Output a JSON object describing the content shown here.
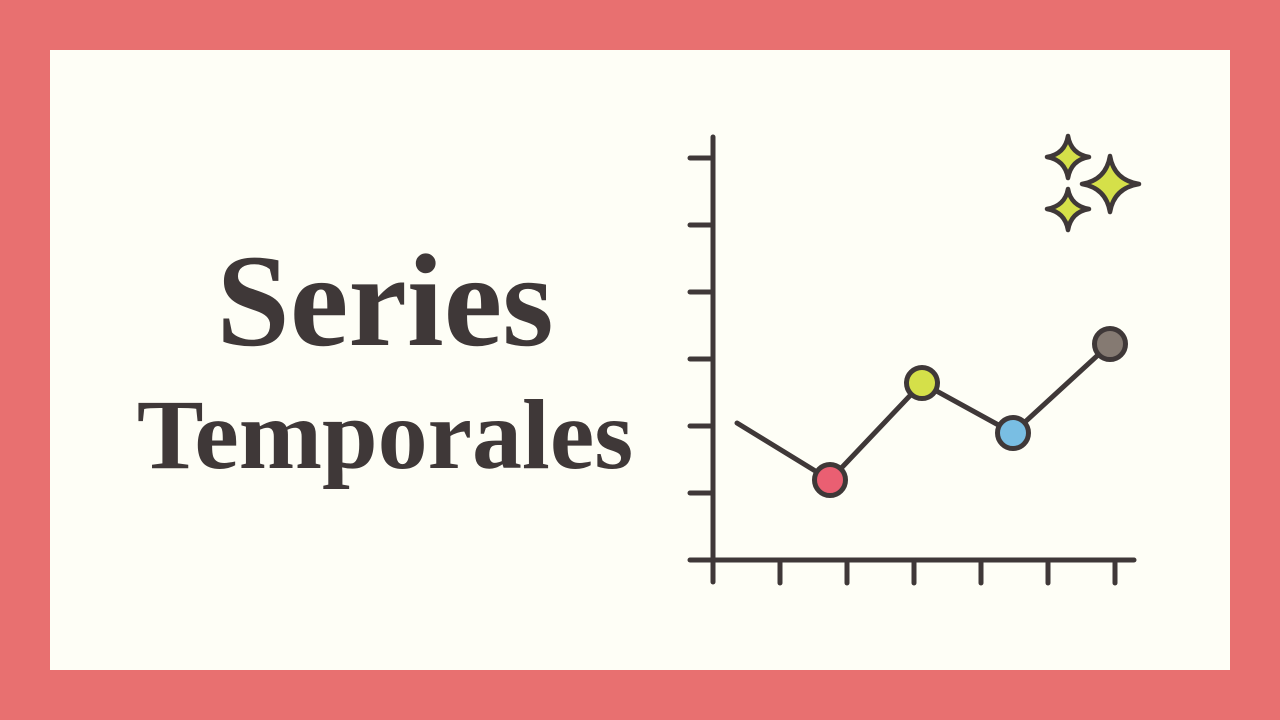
{
  "title": {
    "line1": "Series",
    "line2": "Temporales"
  },
  "colors": {
    "border": "#e87070",
    "background": "#fefef6",
    "ink": "#3f3838",
    "point_red": "#ea5f72",
    "point_yellow": "#d5e049",
    "point_blue": "#79bee3",
    "point_gray": "#857a72",
    "sparkle": "#d5e049"
  },
  "icons": [
    "line-chart-icon",
    "sparkles-icon"
  ]
}
